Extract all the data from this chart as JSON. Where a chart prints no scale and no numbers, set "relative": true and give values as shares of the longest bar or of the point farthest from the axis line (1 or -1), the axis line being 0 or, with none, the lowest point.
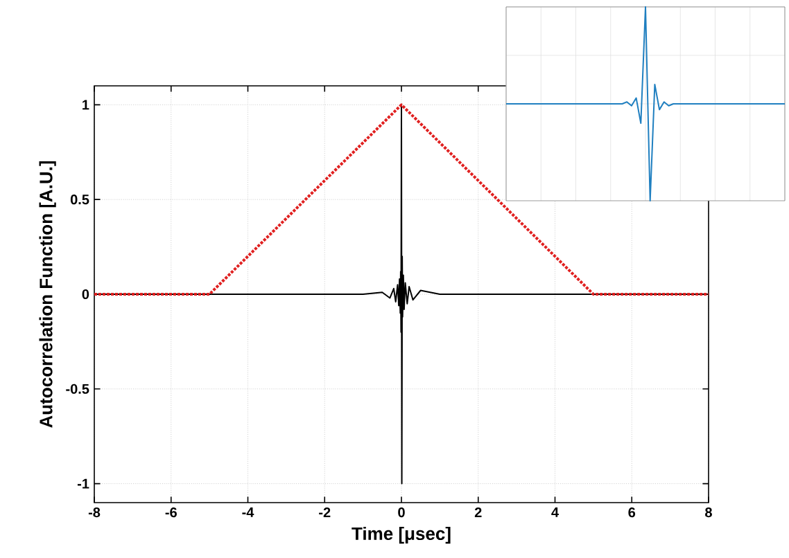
{
  "chart_data": [
    {
      "type": "line",
      "xlabel": "Time [μsec]",
      "ylabel": "Autocorrelation Function [A.U.]",
      "xlim": [
        -8,
        8
      ],
      "xticks": [
        -8,
        -6,
        -4,
        -2,
        0,
        2,
        4,
        6,
        8
      ],
      "ylim": [
        -1.1,
        1.1
      ],
      "yticks": [
        -1,
        -0.5,
        0,
        0.5,
        1
      ],
      "grid": true,
      "marker": "none",
      "series": [
        {
          "color": "#000000",
          "line_style": "solid",
          "x": [
            -8,
            -1,
            -0.5,
            -0.3,
            -0.2,
            -0.15,
            -0.1,
            -0.07,
            -0.05,
            -0.03,
            -0.02,
            -0.01,
            0,
            0.01,
            0.02,
            0.03,
            0.05,
            0.07,
            0.1,
            0.15,
            0.2,
            0.3,
            0.5,
            1,
            8
          ],
          "values": [
            0,
            0,
            0.01,
            -0.02,
            0.03,
            -0.04,
            0.05,
            -0.06,
            0.08,
            -0.1,
            0.12,
            -0.2,
            1,
            -1,
            0.2,
            -0.12,
            0.1,
            -0.08,
            0.06,
            -0.05,
            0.04,
            -0.03,
            0.02,
            0,
            0
          ]
        },
        {
          "color": "#e02020",
          "line_style": "dotted",
          "x": [
            -8,
            -5,
            0,
            5,
            8
          ],
          "values": [
            0,
            0,
            1,
            0,
            0
          ]
        }
      ]
    },
    {
      "type": "line",
      "relative": true,
      "grid": true,
      "tick_labels": false,
      "marker": "none",
      "categories": [
        null,
        null,
        null,
        null,
        null,
        null,
        null,
        null,
        null,
        null,
        null,
        null,
        null,
        null,
        null,
        null,
        null,
        null,
        null,
        null,
        null,
        null,
        null,
        null,
        null,
        null,
        null,
        null,
        null,
        null,
        null,
        null,
        null,
        null,
        null,
        null,
        null,
        null,
        null,
        null,
        null,
        null,
        null,
        null,
        null,
        null,
        null,
        null,
        null,
        null,
        null,
        null,
        null,
        null,
        null,
        null,
        null,
        null,
        null,
        null,
        null
      ],
      "series": [
        {
          "color": "#1f7fc0",
          "line_style": "solid",
          "values": [
            0.5,
            0.5,
            0.5,
            0.5,
            0.5,
            0.5,
            0.5,
            0.5,
            0.5,
            0.5,
            0.5,
            0.5,
            0.5,
            0.5,
            0.5,
            0.5,
            0.5,
            0.5,
            0.5,
            0.5,
            0.5,
            0.5,
            0.5,
            0.5,
            0.5,
            0.5,
            0.51,
            0.49,
            0.53,
            0.4,
            1,
            0,
            0.6,
            0.47,
            0.51,
            0.49,
            0.5,
            0.5,
            0.5,
            0.5,
            0.5,
            0.5,
            0.5,
            0.5,
            0.5,
            0.5,
            0.5,
            0.5,
            0.5,
            0.5,
            0.5,
            0.5,
            0.5,
            0.5,
            0.5,
            0.5,
            0.5,
            0.5,
            0.5,
            0.5,
            0.5
          ]
        }
      ]
    }
  ]
}
